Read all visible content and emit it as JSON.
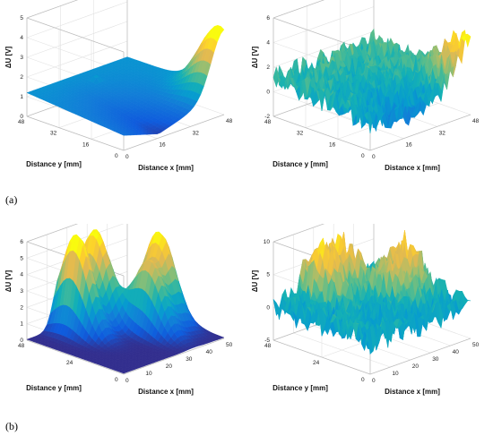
{
  "figure": {
    "label_a": "(a)",
    "label_b": "(b)"
  },
  "chart_data": [
    {
      "id": "a-left",
      "type": "surface",
      "zlabel": "ΔU [V]",
      "xlabel": "Distance x [mm]",
      "ylabel": "Distance y [mm]",
      "xticks": [
        "0",
        "16",
        "32",
        "48"
      ],
      "yticks": [
        "48",
        "32",
        "16",
        "0"
      ],
      "zticks": [
        "0",
        "1",
        "2",
        "3",
        "4",
        "5"
      ],
      "xlim": [
        0,
        48
      ],
      "ylim": [
        0,
        48
      ],
      "zlim": [
        0,
        5
      ],
      "colormap": "parula",
      "noisy": false,
      "description_points": {
        "far_edge_z": 1.2,
        "min_z": 0.1,
        "corner_peak_z": 4.3,
        "spike_z": 1.5
      }
    },
    {
      "id": "a-right",
      "type": "surface",
      "zlabel": "ΔU [V]",
      "xlabel": "Distance x [mm]",
      "ylabel": "Distance y [mm]",
      "xticks": [
        "0",
        "16",
        "32",
        "48"
      ],
      "yticks": [
        "48",
        "32",
        "16",
        "0"
      ],
      "zticks": [
        "-2",
        "0",
        "2",
        "4",
        "6"
      ],
      "xlim": [
        0,
        48
      ],
      "ylim": [
        0,
        48
      ],
      "zlim": [
        -2,
        6
      ],
      "colormap": "parula",
      "noisy": true,
      "description_points": {
        "far_edge_z": 1.5,
        "min_z": -1.5,
        "corner_peak_z": 4.5
      }
    },
    {
      "id": "b-left",
      "type": "surface",
      "zlabel": "ΔU [V]",
      "xlabel": "Distance x [mm]",
      "ylabel": "Distance y [mm]",
      "xticks": [
        "0",
        "10",
        "20",
        "30",
        "40",
        "50"
      ],
      "yticks": [
        "48",
        "24",
        "0"
      ],
      "zticks": [
        "0",
        "1",
        "2",
        "3",
        "4",
        "5",
        "6"
      ],
      "xlim": [
        0,
        50
      ],
      "ylim": [
        0,
        48
      ],
      "zlim": [
        0,
        6
      ],
      "colormap": "parula",
      "noisy": false,
      "peaks": [
        {
          "x": 17,
          "y": 40,
          "z": 6.0
        },
        {
          "x": 28,
          "y": 42,
          "z": 5.7
        },
        {
          "x": 35,
          "y": 22,
          "z": 4.2
        },
        {
          "x": 44,
          "y": 26,
          "z": 5.5
        }
      ]
    },
    {
      "id": "b-right",
      "type": "surface",
      "zlabel": "ΔU [V]",
      "xlabel": "Distance x [mm]",
      "ylabel": "Distance y [mm]",
      "xticks": [
        "0",
        "10",
        "20",
        "30",
        "40",
        "50"
      ],
      "yticks": [
        "48",
        "24",
        "0"
      ],
      "zticks": [
        "-5",
        "0",
        "5",
        "10"
      ],
      "xlim": [
        0,
        50
      ],
      "ylim": [
        0,
        48
      ],
      "zlim": [
        -5,
        10
      ],
      "colormap": "parula",
      "noisy": true,
      "peaks": [
        {
          "x": 17,
          "y": 40,
          "z": 8.0
        },
        {
          "x": 28,
          "y": 42,
          "z": 7.5
        },
        {
          "x": 35,
          "y": 22,
          "z": 5.5
        },
        {
          "x": 44,
          "y": 26,
          "z": 7.0
        }
      ]
    }
  ]
}
